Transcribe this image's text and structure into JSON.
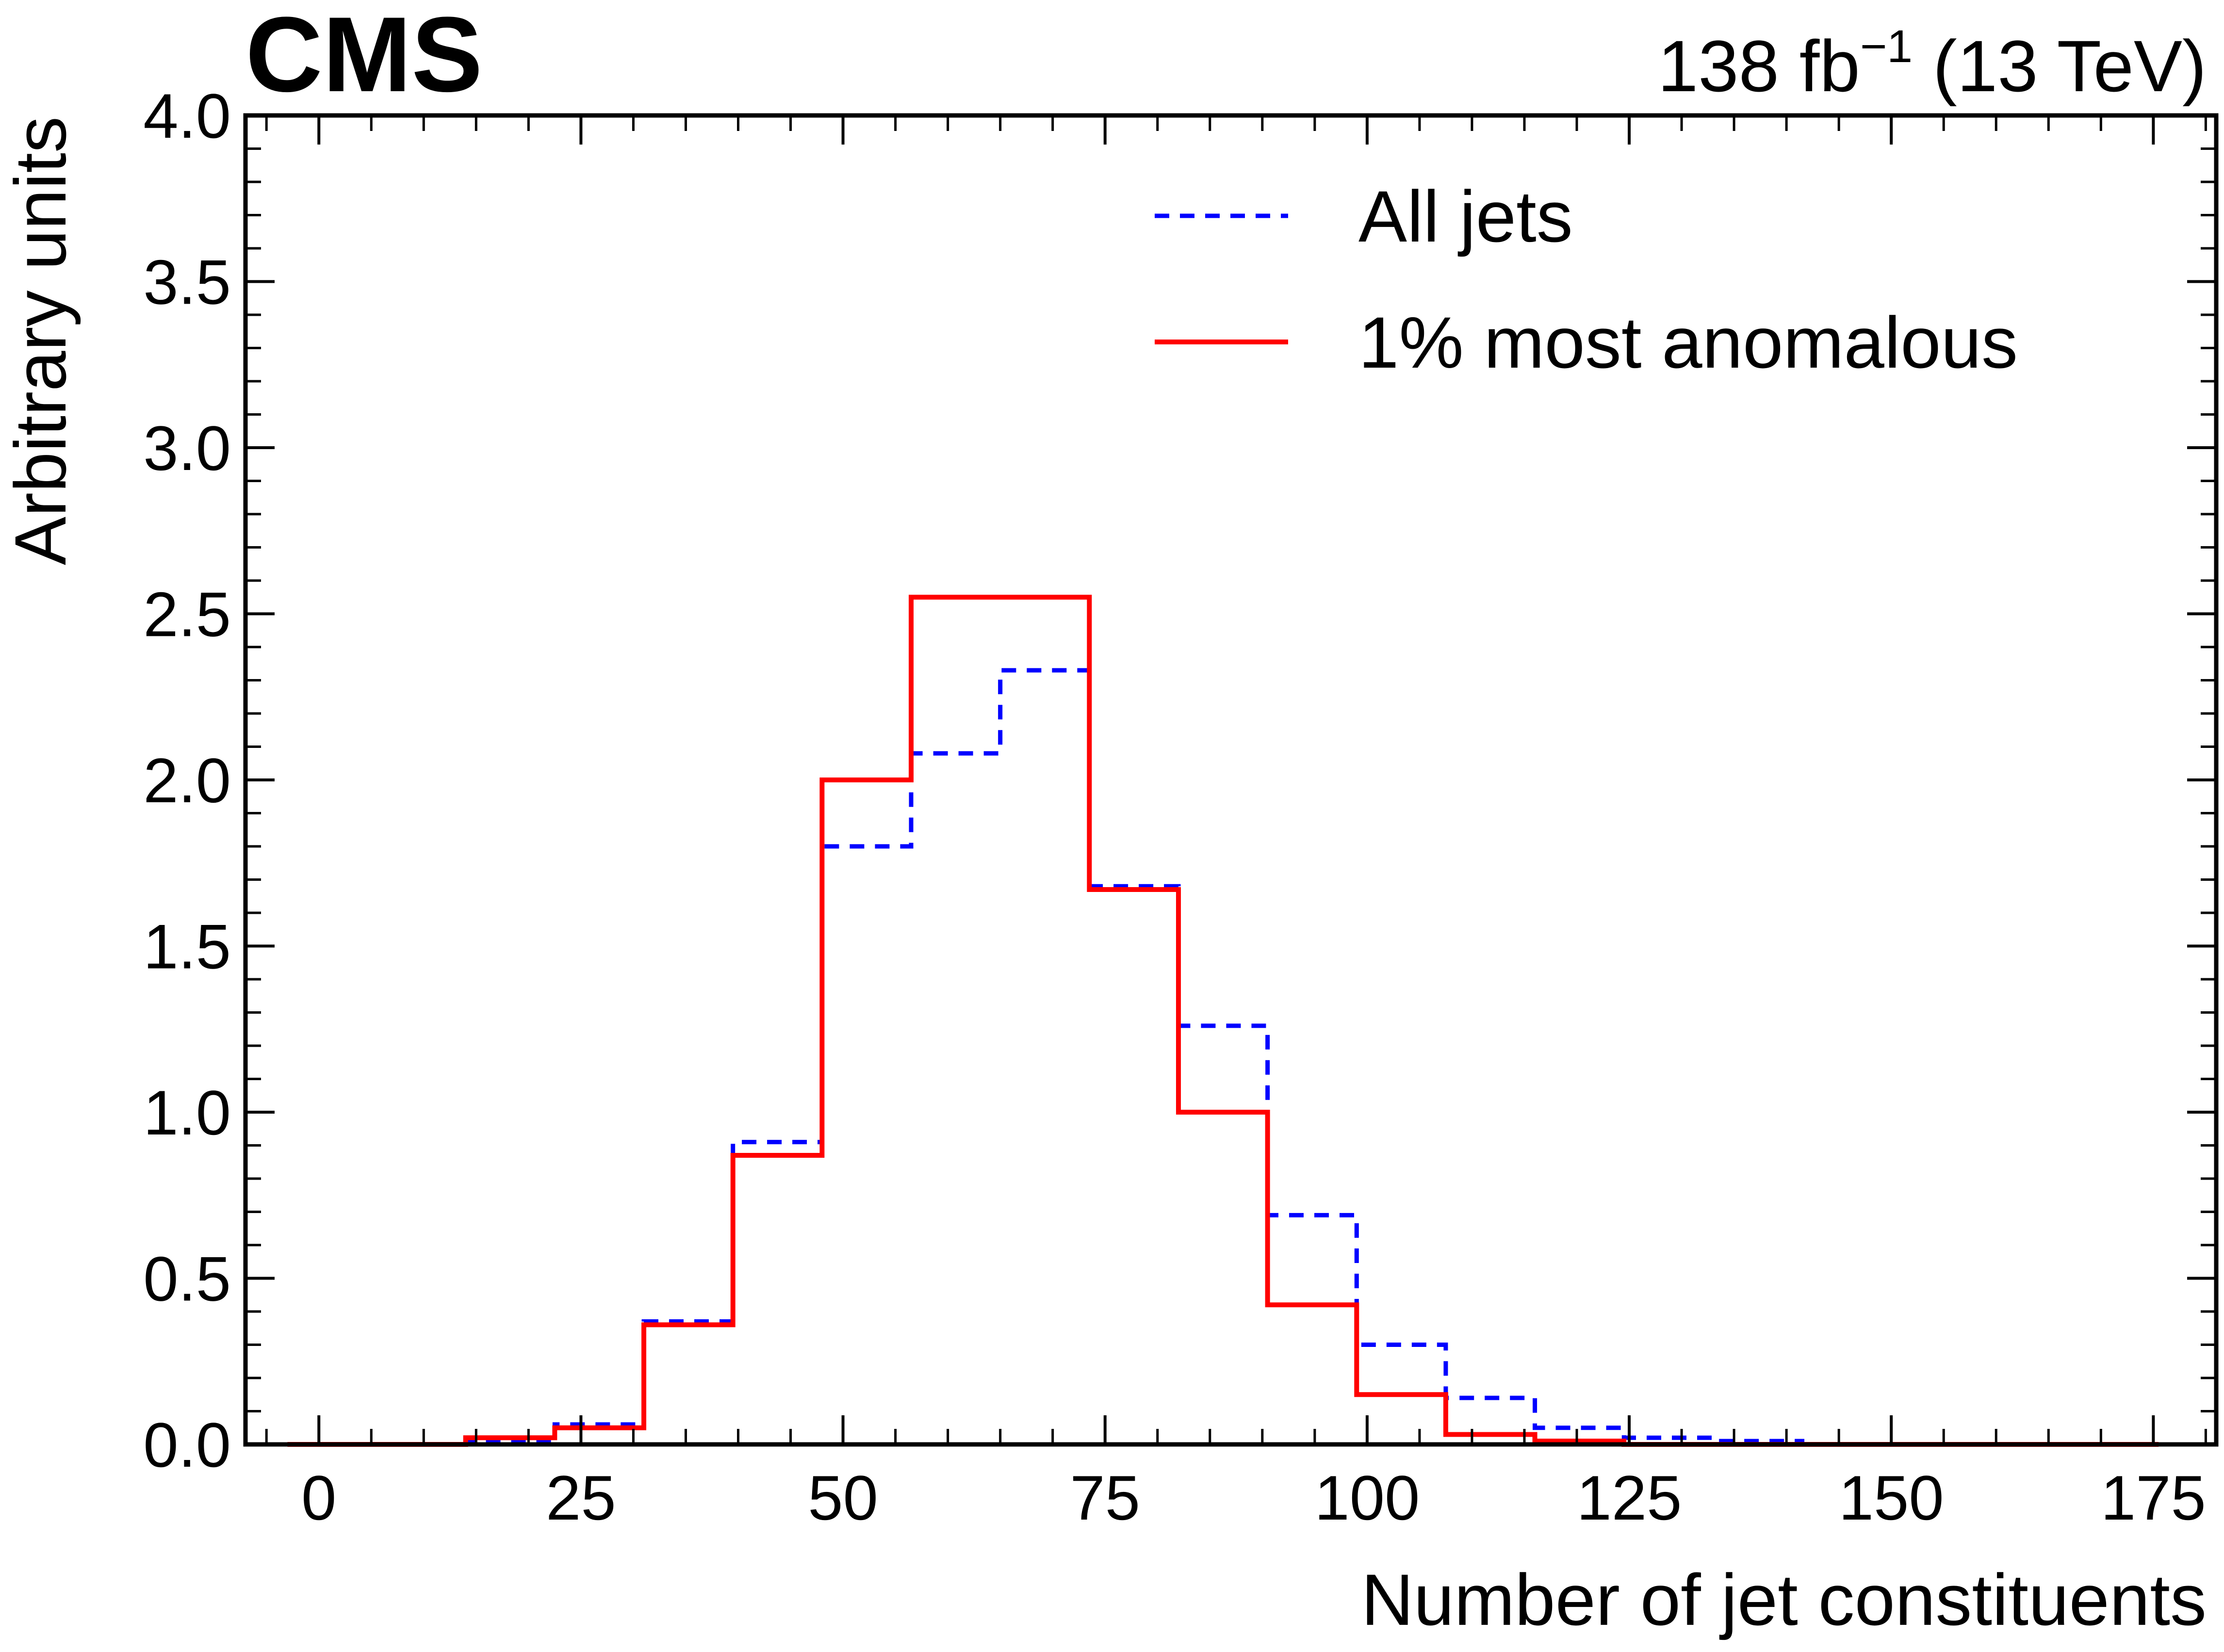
{
  "header": {
    "experiment": "CMS",
    "lumi_value": "138 fb",
    "lumi_exponent": "−1",
    "energy": " (13 TeV)"
  },
  "chart_data": {
    "type": "histogram",
    "xlabel": "Number of jet constituents",
    "ylabel": "Arbitrary units",
    "xlim": [
      -7,
      181
    ],
    "ylim": [
      0,
      4.0
    ],
    "x_ticks": [
      0,
      25,
      50,
      75,
      100,
      125,
      150,
      175
    ],
    "x_tick_labels": [
      "0",
      "25",
      "50",
      "75",
      "100",
      "125",
      "150",
      "175"
    ],
    "y_ticks": [
      0,
      0.5,
      1.0,
      1.5,
      2.0,
      2.5,
      3.0,
      3.5,
      4.0
    ],
    "y_tick_labels": [
      "0.0",
      "0.5",
      "1.0",
      "1.5",
      "2.0",
      "2.5",
      "3.0",
      "3.5",
      "4.0"
    ],
    "bin_edges": [
      -3,
      5.5,
      14,
      22.5,
      31,
      39.5,
      48,
      56.5,
      65,
      73.5,
      82,
      90.5,
      99,
      107.5,
      116,
      124.5,
      133,
      141.5,
      150,
      158.5,
      167,
      175.5
    ],
    "series": [
      {
        "name": "All jets",
        "color": "#0000ff",
        "style": "dashed",
        "values": [
          0.0,
          0.0,
          0.01,
          0.06,
          0.37,
          0.91,
          1.8,
          2.08,
          2.33,
          1.68,
          1.26,
          0.69,
          0.3,
          0.14,
          0.05,
          0.02,
          0.01,
          0.0,
          0.0,
          0.0,
          0.0
        ]
      },
      {
        "name": "1% most anomalous",
        "color": "#ff0000",
        "style": "solid",
        "values": [
          0.0,
          0.0,
          0.02,
          0.05,
          0.36,
          0.87,
          2.0,
          2.55,
          2.55,
          1.67,
          1.0,
          0.42,
          0.15,
          0.03,
          0.01,
          0.0,
          0.0,
          0.0,
          0.0,
          0.0,
          0.0
        ]
      }
    ],
    "legend_position": "top-right",
    "grid": false
  }
}
